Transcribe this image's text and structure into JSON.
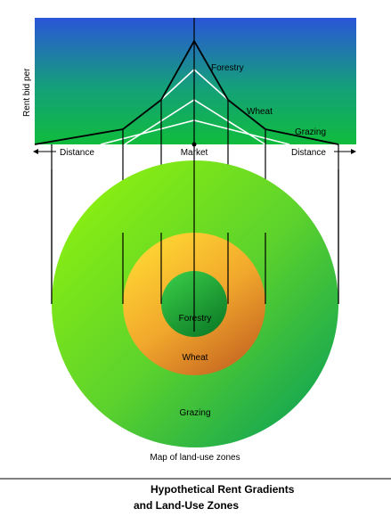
{
  "diagram": {
    "y_axis_label": "Rent bid per",
    "curve_labels": {
      "forestry": "Forestry",
      "wheat": "Wheat",
      "grazing": "Grazing"
    },
    "axis": {
      "left_label": "Distance",
      "center_label": "Market",
      "right_label": "Distance"
    },
    "zones": {
      "forestry": "Forestry",
      "wheat": "Wheat",
      "grazing": "Grazing"
    },
    "map_caption": "Map of land-use zones",
    "title_line1": "Hypothetical Rent Gradients",
    "title_line2": "and Land-Use Zones",
    "colors": {
      "sky_top": "#2a55d8",
      "sky_bottom": "#10b840",
      "grazing_light": "#7ee81a",
      "grazing_dark": "#1aa84a",
      "wheat_light": "#fcc830",
      "wheat_dark": "#d87a24",
      "forestry_light": "#2cbc44",
      "forestry_dark": "#128a2a"
    }
  }
}
